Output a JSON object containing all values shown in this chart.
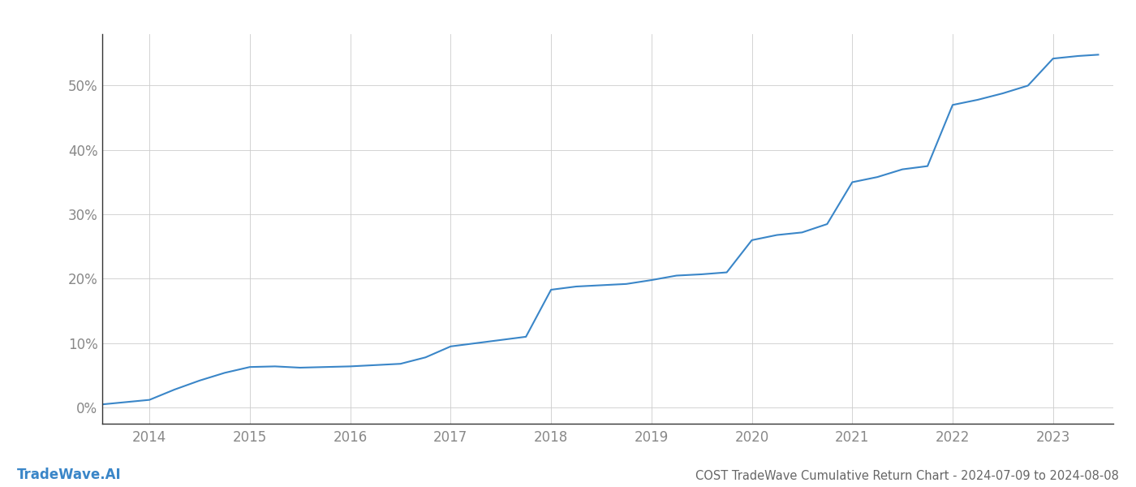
{
  "title": "COST TradeWave Cumulative Return Chart - 2024-07-09 to 2024-08-08",
  "watermark": "TradeWave.AI",
  "line_color": "#3a86c8",
  "line_width": 1.5,
  "background_color": "#ffffff",
  "grid_color": "#cccccc",
  "x_years": [
    2014,
    2015,
    2016,
    2017,
    2018,
    2019,
    2020,
    2021,
    2022,
    2023
  ],
  "x_data": [
    2013.53,
    2014.0,
    2014.25,
    2014.5,
    2014.75,
    2015.0,
    2015.25,
    2015.5,
    2015.75,
    2016.0,
    2016.25,
    2016.5,
    2016.75,
    2017.0,
    2017.25,
    2017.5,
    2017.75,
    2018.0,
    2018.25,
    2018.5,
    2018.75,
    2019.0,
    2019.25,
    2019.5,
    2019.75,
    2020.0,
    2020.25,
    2020.5,
    2020.75,
    2021.0,
    2021.25,
    2021.5,
    2021.75,
    2022.0,
    2022.25,
    2022.5,
    2022.75,
    2023.0,
    2023.25,
    2023.45
  ],
  "y_data": [
    0.005,
    0.012,
    0.028,
    0.042,
    0.054,
    0.063,
    0.064,
    0.062,
    0.063,
    0.064,
    0.066,
    0.068,
    0.078,
    0.095,
    0.1,
    0.105,
    0.11,
    0.183,
    0.188,
    0.19,
    0.192,
    0.198,
    0.205,
    0.207,
    0.21,
    0.26,
    0.268,
    0.272,
    0.285,
    0.35,
    0.358,
    0.37,
    0.375,
    0.47,
    0.478,
    0.488,
    0.5,
    0.542,
    0.546,
    0.548
  ],
  "yticks": [
    0.0,
    0.1,
    0.2,
    0.3,
    0.4,
    0.5
  ],
  "ylim": [
    -0.025,
    0.58
  ],
  "xlim": [
    2013.53,
    2023.6
  ],
  "title_fontsize": 10.5,
  "tick_fontsize": 12,
  "watermark_fontsize": 12,
  "title_color": "#666666",
  "tick_color": "#888888",
  "watermark_color": "#3a86c8",
  "left_spine_color": "#333333",
  "bottom_spine_color": "#333333"
}
